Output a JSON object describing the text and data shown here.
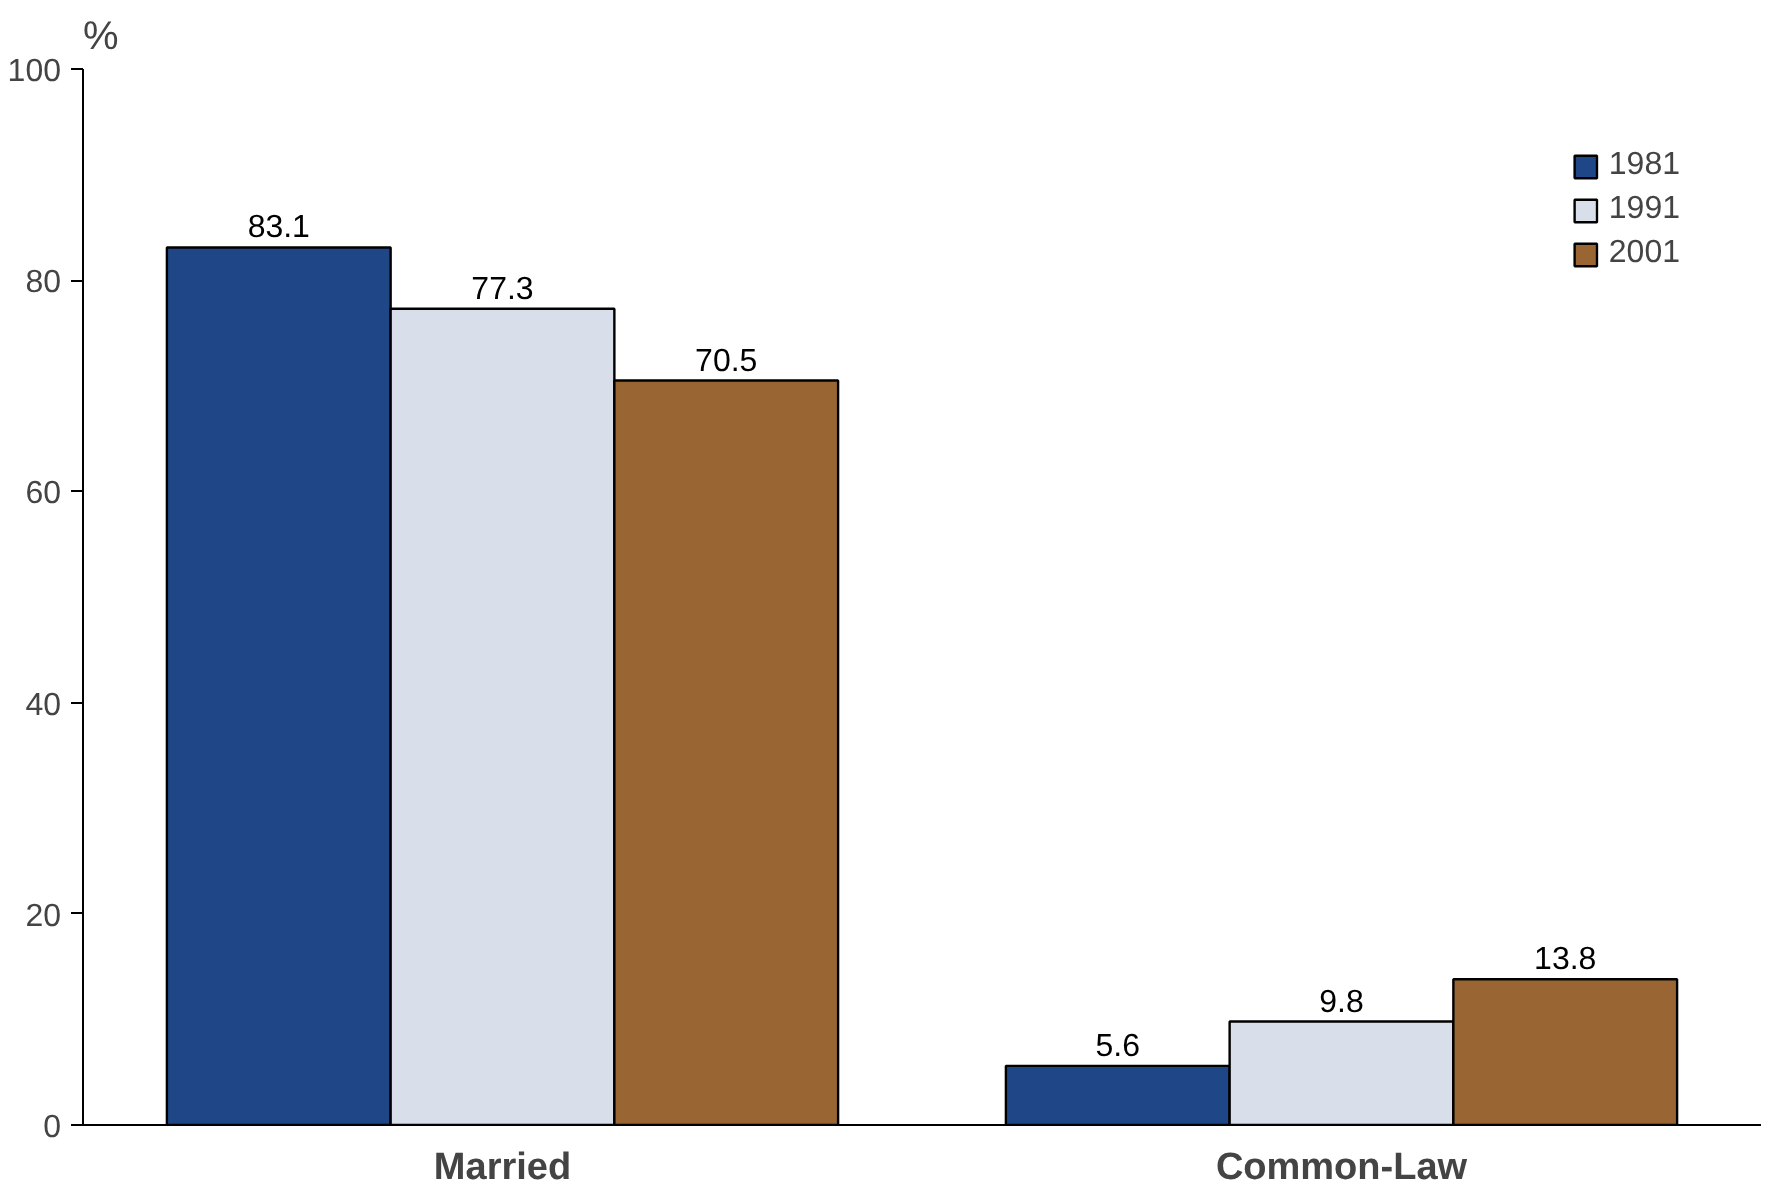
{
  "chart_data": {
    "type": "bar",
    "ylabel": "%",
    "categories": [
      "Married",
      "Common-Law"
    ],
    "series": [
      {
        "name": "1981",
        "color": "#1f4788",
        "values": [
          83.1,
          5.6
        ]
      },
      {
        "name": "1991",
        "color": "#d9dfea",
        "values": [
          77.3,
          9.8
        ]
      },
      {
        "name": "2001",
        "color": "#996633",
        "values": [
          70.5,
          13.8
        ]
      }
    ],
    "ylim": [
      0,
      100
    ],
    "yticks": [
      0,
      20,
      40,
      60,
      80,
      100
    ],
    "grid": false,
    "legend": "top right",
    "data_labels": true
  }
}
